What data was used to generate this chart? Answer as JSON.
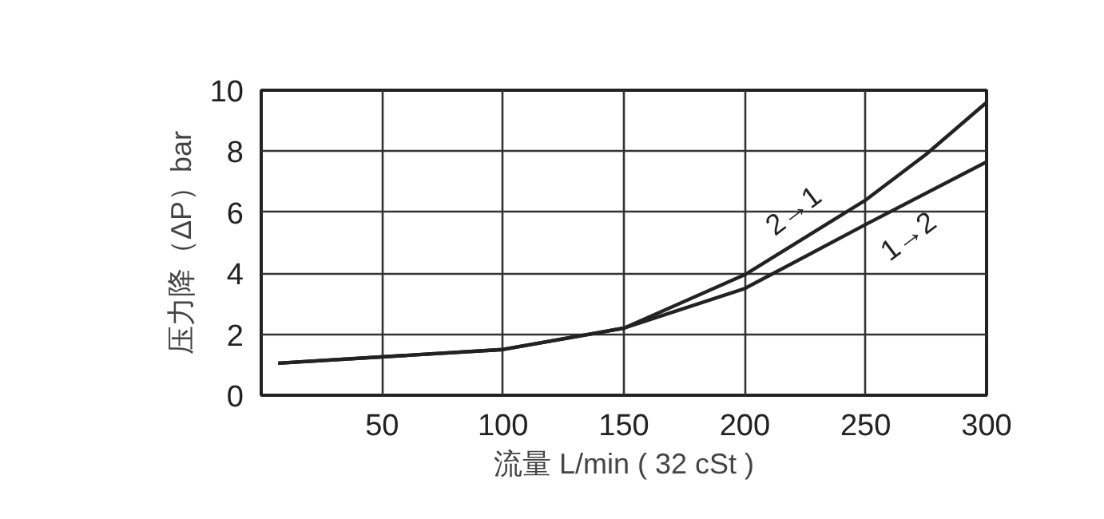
{
  "chart_data": {
    "type": "line",
    "xlabel": "流量 L/min ( 32 cSt )",
    "ylabel": "压力降（ΔP）bar",
    "series": [
      {
        "name": "2→1",
        "color": "#222222",
        "x": [
          7,
          100,
          150,
          200,
          250,
          275,
          300
        ],
        "values": [
          1.05,
          1.5,
          2.2,
          3.95,
          6.4,
          7.9,
          9.6
        ]
      },
      {
        "name": "1→2",
        "color": "#222222",
        "x": [
          7,
          100,
          150,
          200,
          250,
          300
        ],
        "values": [
          1.05,
          1.5,
          2.2,
          3.5,
          5.6,
          7.65
        ]
      }
    ],
    "xlim": [
      0,
      300
    ],
    "xticks": [
      {
        "value": 0,
        "label": null
      },
      50,
      100,
      150,
      200,
      250,
      300
    ],
    "ylim": [
      0,
      10
    ],
    "yticks": [
      0,
      2,
      4,
      6,
      8,
      10
    ],
    "grid": true,
    "marker": "none",
    "line_style": "solid"
  }
}
